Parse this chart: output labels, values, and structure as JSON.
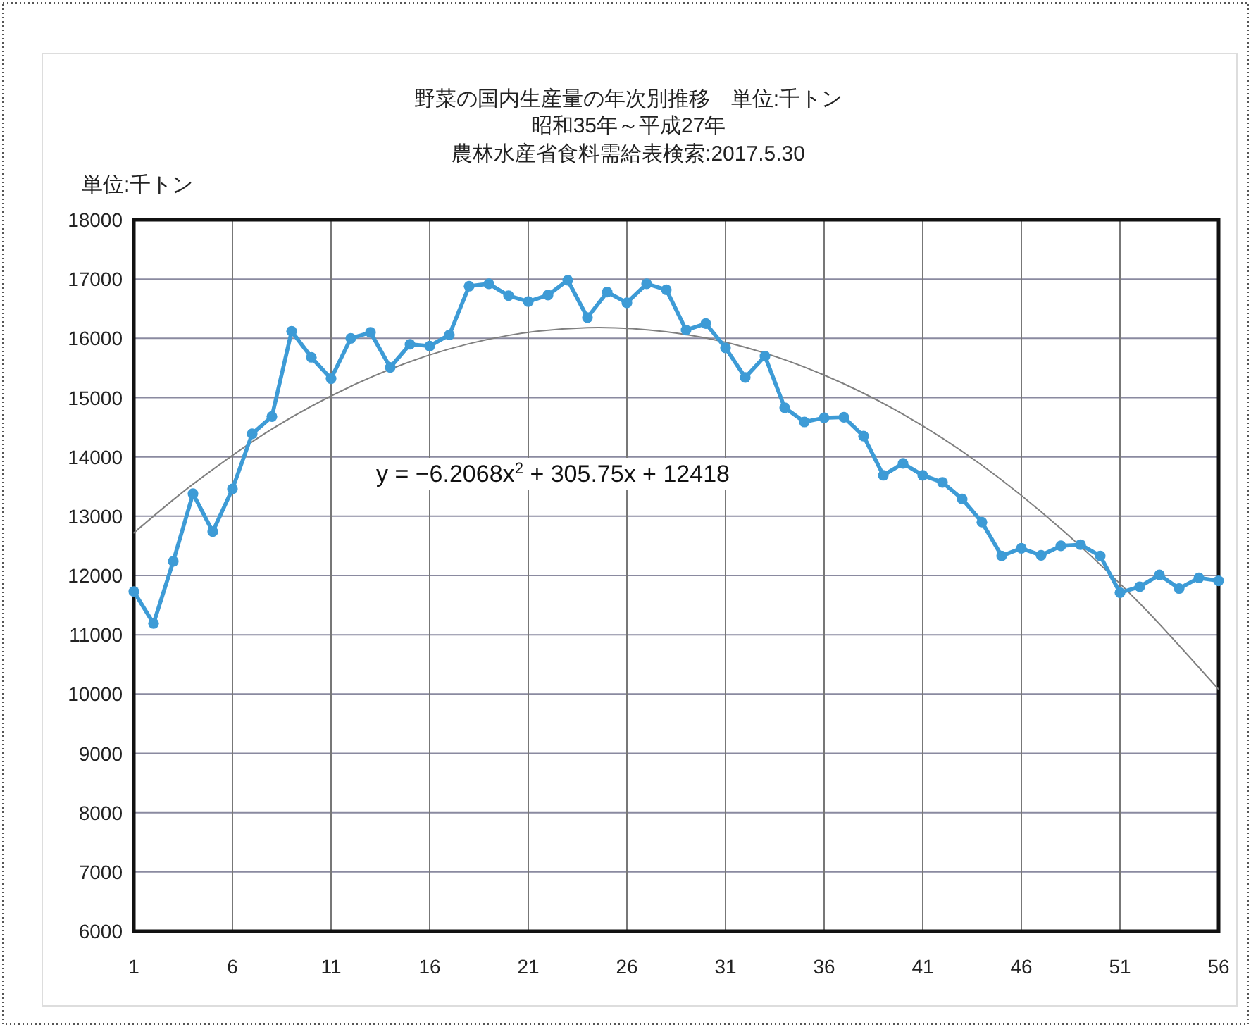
{
  "chart_data": {
    "type": "line",
    "title": "野菜の国内生産量の年次別推移　単位:千トン",
    "subtitle": "昭和35年～平成27年",
    "ylabel": "単位:千トン",
    "annotations": [
      "農林水産省食料需給表検索:2017.5.30",
      "y = −6.2068x$^{2}$ + 305.75x + 12418"
    ],
    "xlim": [
      1,
      56
    ],
    "xticks": [
      1,
      6,
      11,
      16,
      21,
      26,
      31,
      36,
      41,
      46,
      51,
      56
    ],
    "ylim": [
      6000,
      18000
    ],
    "yticks": [
      6000,
      7000,
      8000,
      9000,
      10000,
      11000,
      12000,
      13000,
      14000,
      15000,
      16000,
      17000,
      18000
    ],
    "grid": true,
    "marker": "circle",
    "line_style": "solid",
    "series": [
      {
        "color": "#3d9bd6",
        "x": [
          1,
          2,
          3,
          4,
          5,
          6,
          7,
          8,
          9,
          10,
          11,
          12,
          13,
          14,
          15,
          16,
          17,
          18,
          19,
          20,
          21,
          22,
          23,
          24,
          25,
          26,
          27,
          28,
          29,
          30,
          31,
          32,
          33,
          34,
          35,
          36,
          37,
          38,
          39,
          40,
          41,
          42,
          43,
          44,
          45,
          46,
          47,
          48,
          49,
          50,
          51,
          52,
          53,
          54,
          55,
          56
        ],
        "values": [
          11730,
          11190,
          12240,
          13380,
          12740,
          13460,
          14390,
          14680,
          16120,
          15680,
          15320,
          16000,
          16100,
          15510,
          15900,
          15870,
          16060,
          16880,
          16920,
          16720,
          16620,
          16730,
          16980,
          16350,
          16780,
          16600,
          16920,
          16820,
          16140,
          16250,
          15840,
          15340,
          15700,
          14830,
          14590,
          14660,
          14670,
          14350,
          13690,
          13890,
          13690,
          13570,
          13290,
          12900,
          12330,
          12460,
          12340,
          12500,
          12520,
          12330,
          11710,
          11810,
          12010,
          11780,
          11960,
          11910
        ]
      },
      {
        "color": "#7f7f7f",
        "marker": "none",
        "x": [
          1,
          4,
          8,
          12,
          16,
          20,
          24,
          28,
          32,
          36,
          40,
          44,
          48,
          52,
          56
        ],
        "values": [
          12720,
          13540,
          14470,
          15190,
          15720,
          16050,
          16180,
          16110,
          15850,
          15380,
          14720,
          13860,
          12790,
          11530,
          10080
        ]
      }
    ]
  }
}
